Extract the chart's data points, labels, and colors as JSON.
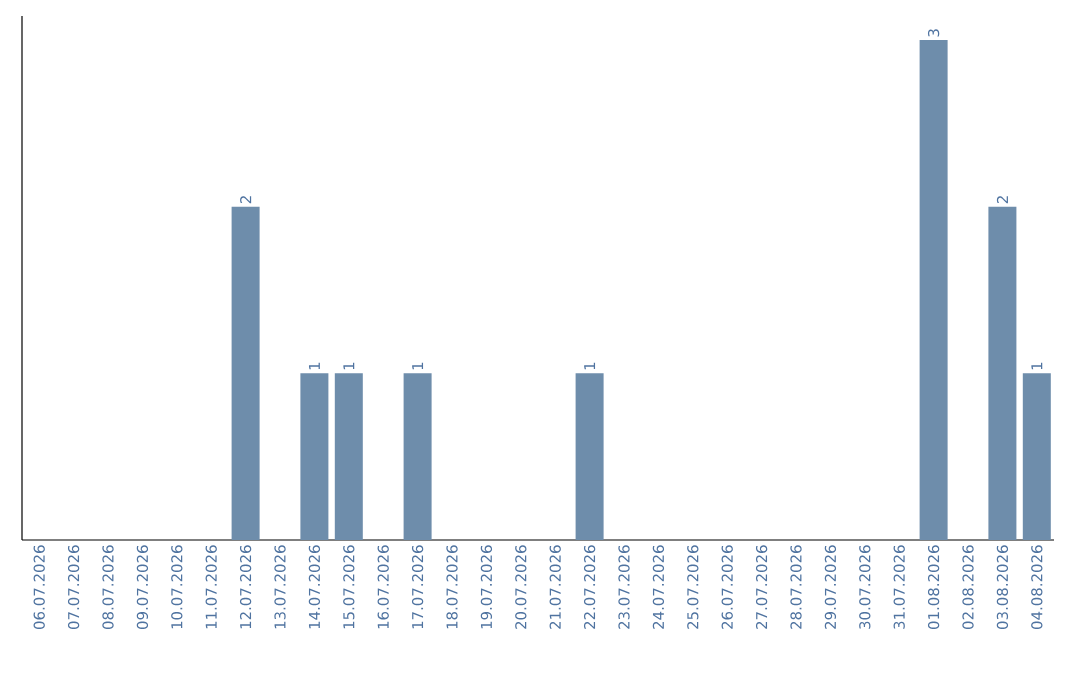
{
  "chart_data": {
    "type": "bar",
    "color": "#6e8dab",
    "categories": [
      "06.07.2026",
      "07.07.2026",
      "08.07.2026",
      "09.07.2026",
      "10.07.2026",
      "11.07.2026",
      "12.07.2026",
      "13.07.2026",
      "14.07.2026",
      "15.07.2026",
      "16.07.2026",
      "17.07.2026",
      "18.07.2026",
      "19.07.2026",
      "20.07.2026",
      "21.07.2026",
      "22.07.2026",
      "23.07.2026",
      "24.07.2026",
      "25.07.2026",
      "26.07.2026",
      "27.07.2026",
      "28.07.2026",
      "29.07.2026",
      "30.07.2026",
      "31.07.2026",
      "01.08.2026",
      "02.08.2026",
      "03.08.2026",
      "04.08.2026"
    ],
    "values": [
      0,
      0,
      0,
      0,
      0,
      0,
      2,
      0,
      1,
      1,
      0,
      1,
      0,
      0,
      0,
      0,
      1,
      0,
      0,
      0,
      0,
      0,
      0,
      0,
      0,
      0,
      3,
      0,
      2,
      1
    ],
    "value_labels": [
      null,
      null,
      null,
      null,
      null,
      null,
      "2",
      null,
      "1",
      "1",
      null,
      "1",
      null,
      null,
      null,
      null,
      "1",
      null,
      null,
      null,
      null,
      null,
      null,
      null,
      null,
      null,
      "3",
      null,
      "2",
      "1"
    ],
    "tick_labels": "x"
  }
}
